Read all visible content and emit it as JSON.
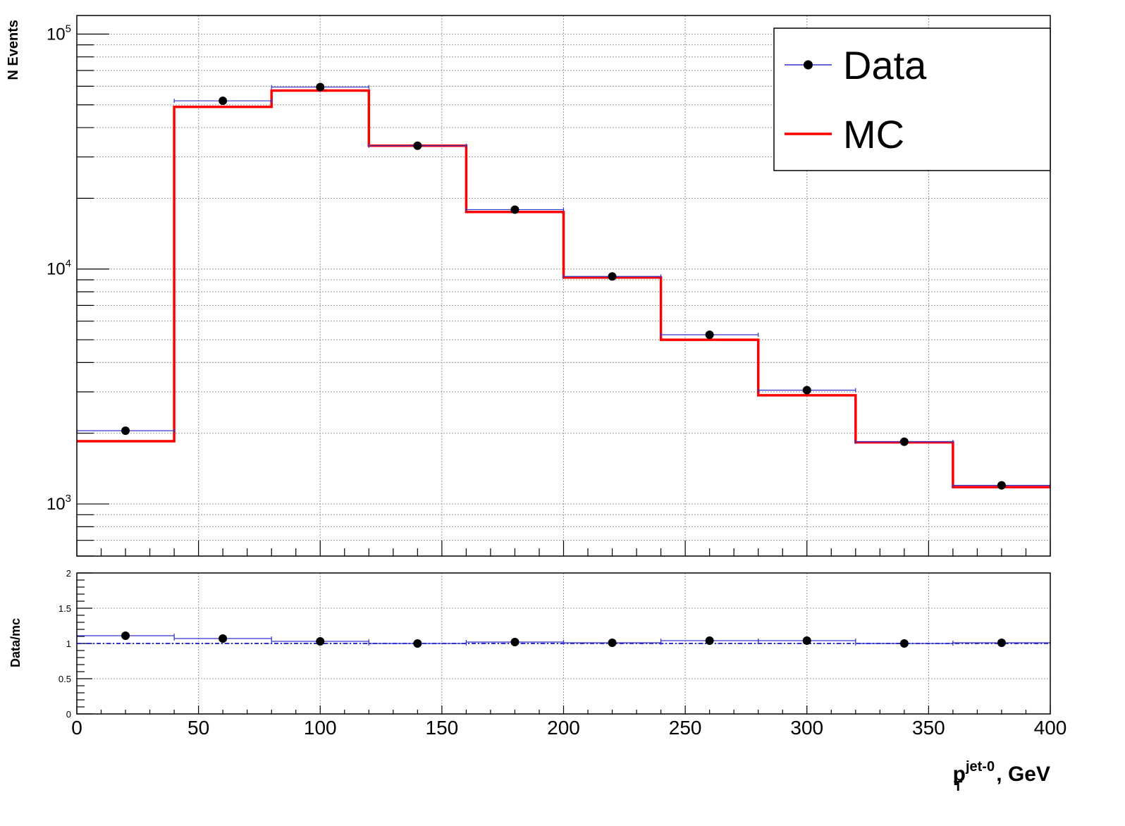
{
  "chart_data": [
    {
      "type": "line",
      "panel": "main",
      "yscale": "log",
      "ylabel": "N Events",
      "xlim": [
        0,
        400
      ],
      "ylim": [
        600,
        120000
      ],
      "grid": true,
      "y_ticks": [
        {
          "value": 1000,
          "base": "10",
          "exp": "3"
        },
        {
          "value": 10000,
          "base": "10",
          "exp": "4"
        },
        {
          "value": 100000,
          "base": "10",
          "exp": "5"
        }
      ],
      "bin_edges": [
        0,
        40,
        80,
        120,
        160,
        200,
        240,
        280,
        320,
        360,
        400
      ],
      "legend": {
        "position": "top-right",
        "entries": [
          {
            "label": "Data",
            "color": "#000000",
            "line_color": "#3333cc",
            "marker": "circle"
          },
          {
            "label": "MC",
            "color": "#ff0000",
            "marker": "line"
          }
        ]
      },
      "series": [
        {
          "name": "Data",
          "color": "#000000",
          "error_color": "#3333cc",
          "x": [
            20,
            60,
            100,
            140,
            180,
            220,
            260,
            300,
            340,
            380
          ],
          "values": [
            2050,
            52000,
            59500,
            33500,
            17900,
            9300,
            5250,
            3050,
            1840,
            1200
          ]
        },
        {
          "name": "MC",
          "color": "#ff0000",
          "x": [
            20,
            60,
            100,
            140,
            180,
            220,
            260,
            300,
            340,
            380
          ],
          "values": [
            1850,
            49000,
            57500,
            33500,
            17500,
            9200,
            5000,
            2900,
            1830,
            1180
          ]
        }
      ]
    },
    {
      "type": "scatter",
      "panel": "ratio",
      "ylabel": "Data/mc",
      "xlabel_main": "p",
      "xlabel_sub": "T",
      "xlabel_sup": "jet-0",
      "xlabel_rest": ", GeV",
      "xlim": [
        0,
        400
      ],
      "ylim": [
        0,
        2
      ],
      "grid": true,
      "x_ticks": [
        "0",
        "50",
        "100",
        "150",
        "200",
        "250",
        "300",
        "350",
        "400"
      ],
      "y_ticks": [
        "0",
        "0.5",
        "1",
        "1.5",
        "2"
      ],
      "reference_line": 1,
      "series": [
        {
          "name": "Data/mc",
          "color": "#000000",
          "error_color": "#3333cc",
          "x": [
            20,
            60,
            100,
            140,
            180,
            220,
            260,
            300,
            340,
            380
          ],
          "values": [
            1.11,
            1.07,
            1.03,
            1.0,
            1.02,
            1.01,
            1.04,
            1.04,
            1.0,
            1.01
          ]
        }
      ]
    }
  ]
}
